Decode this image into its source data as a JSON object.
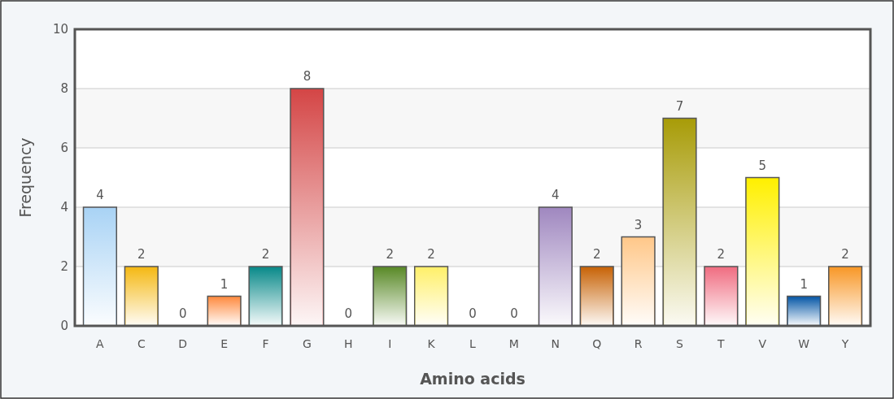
{
  "chart_data": {
    "type": "bar",
    "xlabel": "Amino acids",
    "ylabel": "Frequency",
    "categories": [
      "A",
      "C",
      "D",
      "E",
      "F",
      "G",
      "H",
      "I",
      "K",
      "L",
      "M",
      "N",
      "Q",
      "R",
      "S",
      "T",
      "V",
      "W",
      "Y"
    ],
    "values": [
      4,
      2,
      0,
      1,
      2,
      8,
      0,
      2,
      2,
      0,
      0,
      4,
      2,
      3,
      7,
      2,
      5,
      1,
      2
    ],
    "colors": [
      "#a9d3f5",
      "#f5b915",
      "#c0c0c0",
      "#ff8c42",
      "#0a8a8a",
      "#d44646",
      "#c0c0c0",
      "#5a8a28",
      "#fff06a",
      "#c0c0c0",
      "#c0c0c0",
      "#a088c0",
      "#c86408",
      "#ffc88a",
      "#a89c08",
      "#f06e82",
      "#fff000",
      "#0a5aa8",
      "#f89828"
    ],
    "ylim": [
      0,
      10
    ],
    "yticks": [
      0,
      2,
      4,
      6,
      8,
      10
    ],
    "grid": "y",
    "data_labels": true
  }
}
